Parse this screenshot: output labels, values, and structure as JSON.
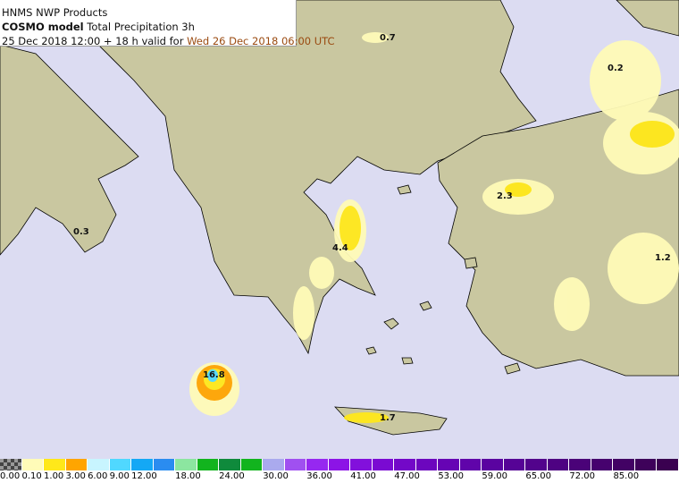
{
  "header": {
    "line1": "HNMS NWP Products",
    "model": "COSMO model",
    "product": "Total Precipitation 3h",
    "run": "25 Dec 2018 12:00 + 18 h valid for",
    "valid": "Wed 26 Dec 2018 06:00 UTC"
  },
  "colors": {
    "sea": "#dcdcf2",
    "land": "#c9c7a0",
    "coast": "#000000"
  },
  "value_labels": [
    "0.7",
    "0.2",
    "2.3",
    "1.2",
    "0.3",
    "4.4",
    "16.8",
    "1.7"
  ],
  "legend": {
    "colors": [
      "checker",
      "#fffbb8",
      "#ffe81a",
      "#ffa500",
      "#c8f5ff",
      "#50d8ff",
      "#14a8f5",
      "#2a8cf0",
      "#8ce6a0",
      "#12b41e",
      "#0f8a3c",
      "#12b41e",
      "#aaaaee",
      "#a050f0",
      "#9628f0",
      "#8c14e6",
      "#8210dc",
      "#7a0ad2",
      "#7308c8",
      "#6c06be",
      "#6604b4",
      "#6004aa",
      "#5a03a0",
      "#560396",
      "#52038c",
      "#4e0282",
      "#4a0278",
      "#46026e",
      "#420264",
      "#3e025a",
      "#3a0150"
    ],
    "ticks": [
      "0.00",
      "0.10",
      "1.00",
      "3.00",
      "6.00",
      "9.00",
      "12.00",
      "18.00",
      "24.00",
      "30.00",
      "36.00",
      "41.00",
      "47.00",
      "53.00",
      "59.00",
      "65.00",
      "72.00",
      "85.00"
    ]
  }
}
